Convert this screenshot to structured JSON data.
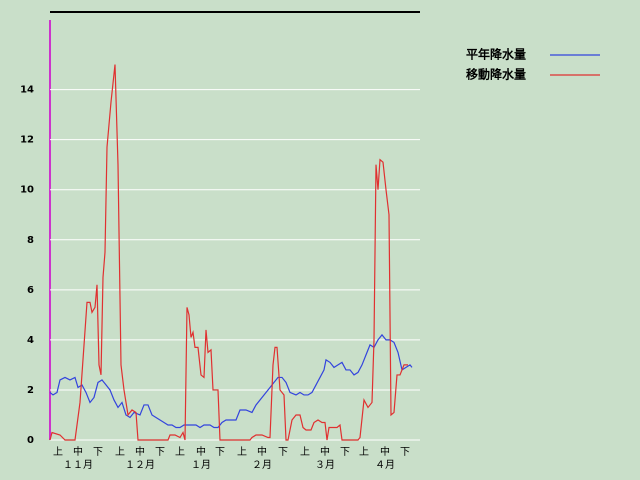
{
  "chart_data": {
    "type": "line",
    "xlim": [
      0,
      185
    ],
    "ylim": [
      0,
      17.1
    ],
    "yticks": [
      0,
      2,
      4,
      6,
      8,
      10,
      12,
      14
    ],
    "xticks": [
      {
        "value": 4,
        "label": "上"
      },
      {
        "value": 14,
        "label": "中"
      },
      {
        "value": 24,
        "label": "下"
      },
      {
        "value": 35,
        "label": "上"
      },
      {
        "value": 45,
        "label": "中"
      },
      {
        "value": 55,
        "label": "下"
      },
      {
        "value": 65,
        "label": "上"
      },
      {
        "value": 75.5,
        "label": "中"
      },
      {
        "value": 85,
        "label": "下"
      },
      {
        "value": 96,
        "label": "上"
      },
      {
        "value": 106,
        "label": "中"
      },
      {
        "value": 116.5,
        "label": "下"
      },
      {
        "value": 127.5,
        "label": "上"
      },
      {
        "value": 137.5,
        "label": "中"
      },
      {
        "value": 147.5,
        "label": "下"
      },
      {
        "value": 157,
        "label": "上"
      },
      {
        "value": 167.5,
        "label": "中"
      },
      {
        "value": 177.5,
        "label": "下"
      }
    ],
    "month_labels": [
      {
        "value": 14,
        "label": "１１月"
      },
      {
        "value": 45,
        "label": "１２月"
      },
      {
        "value": 75.5,
        "label": "１月"
      },
      {
        "value": 106,
        "label": "２月"
      },
      {
        "value": 137.5,
        "label": "３月"
      },
      {
        "value": 167.5,
        "label": "４月"
      }
    ],
    "grid": true,
    "legend": "top-right",
    "series": [
      {
        "name": "平年降水量",
        "color": "#3344dd",
        "x": [
          0,
          1.5,
          3.5,
          5,
          7.5,
          10,
          12.5,
          14,
          16,
          18,
          20,
          22,
          24,
          26,
          28,
          30,
          32,
          34,
          36,
          38,
          40,
          42,
          45,
          47,
          49,
          51,
          53,
          55,
          57,
          59,
          61,
          63,
          65,
          67,
          70,
          73,
          75,
          77,
          80,
          82,
          84,
          86,
          88,
          91,
          93,
          95,
          98,
          101,
          103,
          106,
          108,
          110,
          112,
          114,
          116,
          118,
          120,
          123,
          125,
          127,
          129,
          131,
          133,
          135,
          137,
          138,
          140,
          142,
          144,
          146,
          148,
          150,
          152,
          154,
          156,
          158,
          160,
          162,
          164,
          166,
          168,
          170,
          172,
          174,
          176,
          178,
          180,
          181
        ],
        "values": [
          1.9,
          1.8,
          1.9,
          2.4,
          2.5,
          2.4,
          2.5,
          2.1,
          2.2,
          1.9,
          1.5,
          1.7,
          2.3,
          2.4,
          2.2,
          2.0,
          1.6,
          1.3,
          1.5,
          1.0,
          0.9,
          1.1,
          1.0,
          1.4,
          1.4,
          1.0,
          0.9,
          0.8,
          0.7,
          0.6,
          0.6,
          0.5,
          0.5,
          0.6,
          0.6,
          0.6,
          0.5,
          0.6,
          0.6,
          0.5,
          0.5,
          0.7,
          0.8,
          0.8,
          0.8,
          1.2,
          1.2,
          1.1,
          1.4,
          1.7,
          1.9,
          2.1,
          2.3,
          2.5,
          2.5,
          2.3,
          1.9,
          1.8,
          1.9,
          1.8,
          1.8,
          1.9,
          2.2,
          2.5,
          2.8,
          3.2,
          3.1,
          2.9,
          3.0,
          3.1,
          2.8,
          2.8,
          2.6,
          2.7,
          3.0,
          3.4,
          3.8,
          3.7,
          4.0,
          4.2,
          4.0,
          4.0,
          3.9,
          3.5,
          2.8,
          2.9,
          3.0,
          2.9
        ]
      },
      {
        "name": "移動降水量",
        "color": "#e03030",
        "x": [
          0,
          1,
          5,
          7.5,
          12.5,
          15,
          18.5,
          20,
          21,
          22.5,
          23.5,
          24.5,
          25.5,
          26.5,
          27.5,
          28.5,
          30.5,
          32.5,
          34,
          35.5,
          37,
          39,
          41,
          43,
          44,
          50,
          59,
          60,
          62.5,
          65,
          66.5,
          67.5,
          68.5,
          69.5,
          70.5,
          71.5,
          72.5,
          74,
          75.5,
          77,
          78,
          79,
          80.5,
          81.5,
          84,
          85,
          100,
          101,
          103,
          106,
          109,
          110,
          111.5,
          112.5,
          113.5,
          115,
          117,
          118,
          119,
          121,
          123,
          125,
          126.5,
          128,
          130.5,
          132,
          134,
          136,
          137.5,
          138.5,
          139.5,
          143.5,
          145,
          146,
          154,
          155,
          157,
          159,
          161,
          162,
          163,
          164,
          165,
          166.5,
          168,
          169.5,
          170.5,
          172,
          173.5,
          175,
          177,
          179
        ],
        "values": [
          0,
          0.3,
          0.2,
          0,
          0,
          1.5,
          5.5,
          5.5,
          5.1,
          5.3,
          6.2,
          3,
          2.6,
          6.5,
          7.5,
          11.7,
          13.5,
          15,
          11,
          3,
          2,
          1,
          1.2,
          1.1,
          0,
          0,
          0,
          0.2,
          0.2,
          0.1,
          0.3,
          0,
          5.3,
          5,
          4.1,
          4.3,
          3.7,
          3.7,
          2.6,
          2.5,
          4.4,
          3.5,
          3.6,
          2,
          2,
          0,
          0,
          0.1,
          0.2,
          0.2,
          0.1,
          0.1,
          3,
          3.7,
          3.7,
          2,
          1.8,
          0,
          0,
          0.8,
          1,
          1,
          0.5,
          0.4,
          0.4,
          0.7,
          0.8,
          0.7,
          0.7,
          0,
          0.5,
          0.5,
          0.6,
          0,
          0,
          0.1,
          1.6,
          1.3,
          1.5,
          4,
          11,
          10,
          11.2,
          11.1,
          10,
          9,
          1,
          1.1,
          2.6,
          2.6,
          3,
          3
        ]
      }
    ]
  }
}
